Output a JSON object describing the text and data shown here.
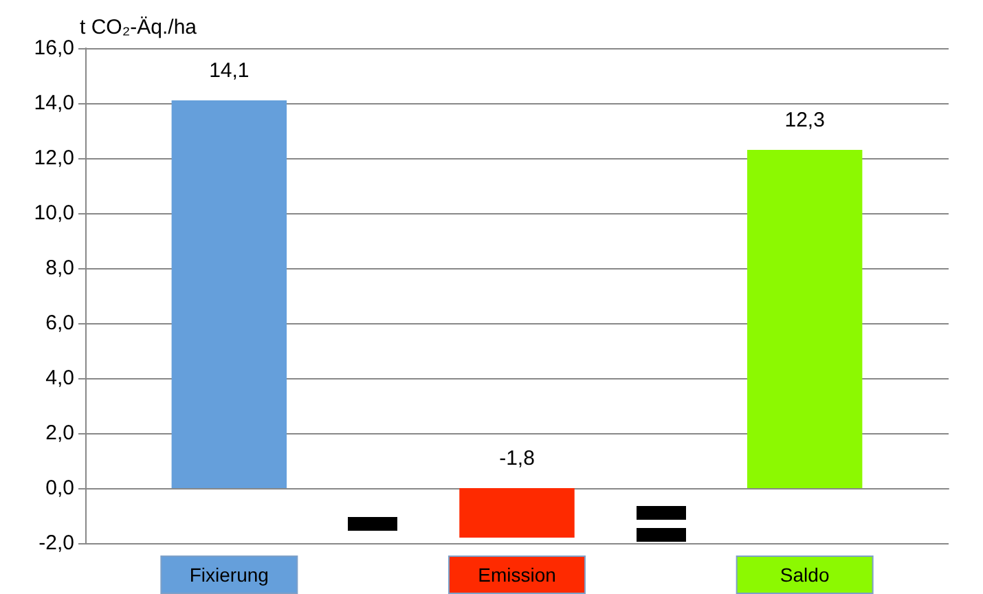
{
  "chart_data": {
    "type": "bar",
    "ylabel": "t CO₂-Äq./ha",
    "categories": [
      "Fixierung",
      "Emission",
      "Saldo"
    ],
    "values": [
      14.1,
      -1.8,
      12.3
    ],
    "colors": [
      "#659fdb",
      "#fe2a00",
      "#8cf901"
    ],
    "value_labels": [
      "14,1",
      "-1,8",
      "12,3"
    ],
    "ylim": [
      -2,
      16
    ],
    "yticks": [
      {
        "value": -2,
        "label": "-2,0"
      },
      {
        "value": 0,
        "label": "0,0"
      },
      {
        "value": 2,
        "label": "2,0"
      },
      {
        "value": 4,
        "label": "4,0"
      },
      {
        "value": 6,
        "label": "6,0"
      },
      {
        "value": 8,
        "label": "8,0"
      },
      {
        "value": 10,
        "label": "10,0"
      },
      {
        "value": 12,
        "label": "12,0"
      },
      {
        "value": 14,
        "label": "14,0"
      },
      {
        "value": 16,
        "label": "16,0"
      }
    ],
    "grid": "y"
  }
}
